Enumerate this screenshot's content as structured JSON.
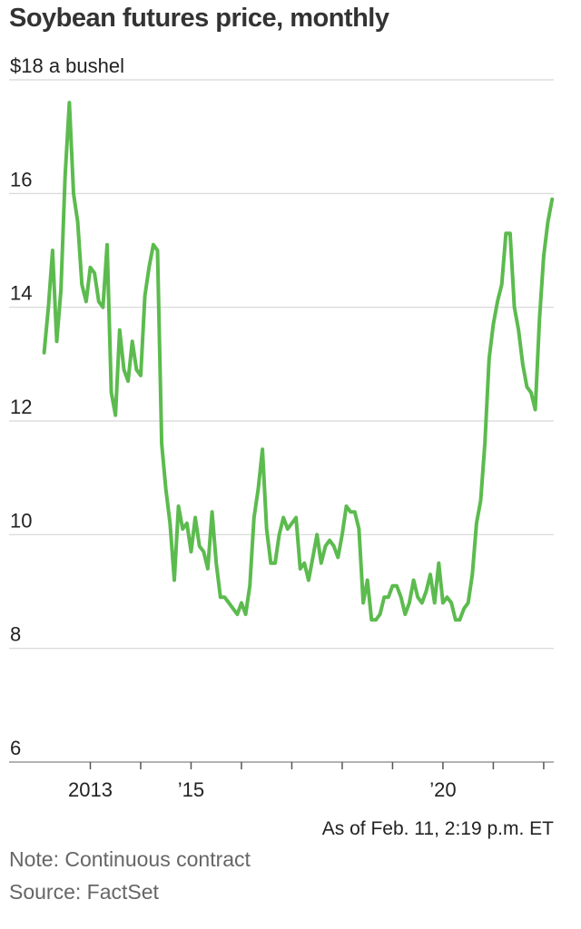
{
  "title": "Soybean futures price, monthly",
  "as_of": "As of Feb. 11, 2:19 p.m. ET",
  "note": "Note: Continuous contract",
  "source": "Source: FactSet",
  "colors": {
    "line": "#5cbb4e",
    "grid": "#d6d6d6",
    "axis": "#999999"
  },
  "chart_data": {
    "type": "line",
    "title": "Soybean futures price, monthly",
    "ylabel": "$18 a bushel",
    "ylim": [
      6,
      18
    ],
    "y_ticks": [
      6,
      8,
      10,
      12,
      14,
      16,
      18
    ],
    "y_tick_labels": [
      "6",
      "8",
      "10",
      "12",
      "14",
      "16",
      "$18 a bushel"
    ],
    "x_range": [
      2012.0,
      2022.2
    ],
    "x_ticks": [
      2013,
      2014,
      2015,
      2016,
      2017,
      2018,
      2019,
      2020,
      2021,
      2022
    ],
    "x_tick_labels": [
      {
        "x": 2013,
        "label": "2013"
      },
      {
        "x": 2015,
        "label": "’15"
      },
      {
        "x": 2020,
        "label": "’20"
      }
    ],
    "grid": true,
    "series": [
      {
        "x": [
          2012.083,
          2012.167,
          2012.25,
          2012.333,
          2012.417,
          2012.5,
          2012.583,
          2012.667,
          2012.75,
          2012.833,
          2012.917,
          2013.0,
          2013.083,
          2013.167,
          2013.25,
          2013.333,
          2013.417,
          2013.5,
          2013.583,
          2013.667,
          2013.75,
          2013.833,
          2013.917,
          2014.0,
          2014.083,
          2014.167,
          2014.25,
          2014.333,
          2014.417,
          2014.5,
          2014.583,
          2014.667,
          2014.75,
          2014.833,
          2014.917,
          2015.0,
          2015.083,
          2015.167,
          2015.25,
          2015.333,
          2015.417,
          2015.5,
          2015.583,
          2015.667,
          2015.75,
          2015.833,
          2015.917,
          2016.0,
          2016.083,
          2016.167,
          2016.25,
          2016.333,
          2016.417,
          2016.5,
          2016.583,
          2016.667,
          2016.75,
          2016.833,
          2016.917,
          2017.0,
          2017.083,
          2017.167,
          2017.25,
          2017.333,
          2017.417,
          2017.5,
          2017.583,
          2017.667,
          2017.75,
          2017.833,
          2017.917,
          2018.0,
          2018.083,
          2018.167,
          2018.25,
          2018.333,
          2018.417,
          2018.5,
          2018.583,
          2018.667,
          2018.75,
          2018.833,
          2018.917,
          2019.0,
          2019.083,
          2019.167,
          2019.25,
          2019.333,
          2019.417,
          2019.5,
          2019.583,
          2019.667,
          2019.75,
          2019.833,
          2019.917,
          2020.0,
          2020.083,
          2020.167,
          2020.25,
          2020.333,
          2020.417,
          2020.5,
          2020.583,
          2020.667,
          2020.75,
          2020.833,
          2020.917,
          2021.0,
          2021.083,
          2021.167,
          2021.25,
          2021.333,
          2021.417,
          2021.5,
          2021.583,
          2021.667,
          2021.75,
          2021.833,
          2021.917,
          2022.0,
          2022.083,
          2022.167
        ],
        "values": [
          13.2,
          14.0,
          15.0,
          13.4,
          14.3,
          16.3,
          17.6,
          16.0,
          15.5,
          14.4,
          14.1,
          14.7,
          14.6,
          14.1,
          14.0,
          15.1,
          12.5,
          12.1,
          13.6,
          12.9,
          12.7,
          13.4,
          12.9,
          12.8,
          14.2,
          14.7,
          15.1,
          15.0,
          11.6,
          10.8,
          10.2,
          9.2,
          10.5,
          10.1,
          10.2,
          9.7,
          10.3,
          9.8,
          9.7,
          9.4,
          10.4,
          9.5,
          8.9,
          8.9,
          8.8,
          8.7,
          8.6,
          8.8,
          8.6,
          9.1,
          10.3,
          10.8,
          11.5,
          10.1,
          9.5,
          9.5,
          10.0,
          10.3,
          10.1,
          10.2,
          10.3,
          9.4,
          9.5,
          9.2,
          9.6,
          10.0,
          9.5,
          9.8,
          9.9,
          9.8,
          9.6,
          10.0,
          10.5,
          10.4,
          10.4,
          10.1,
          8.8,
          9.2,
          8.5,
          8.5,
          8.6,
          8.9,
          8.9,
          9.1,
          9.1,
          8.9,
          8.6,
          8.8,
          9.2,
          8.9,
          8.8,
          9.0,
          9.3,
          8.8,
          9.5,
          8.8,
          8.9,
          8.8,
          8.5,
          8.5,
          8.7,
          8.8,
          9.3,
          10.2,
          10.6,
          11.6,
          13.1,
          13.7,
          14.1,
          14.4,
          15.3,
          15.3,
          14.0,
          13.6,
          13.0,
          12.6,
          12.5,
          12.2,
          13.8,
          14.9,
          15.5,
          15.9
        ]
      }
    ]
  }
}
